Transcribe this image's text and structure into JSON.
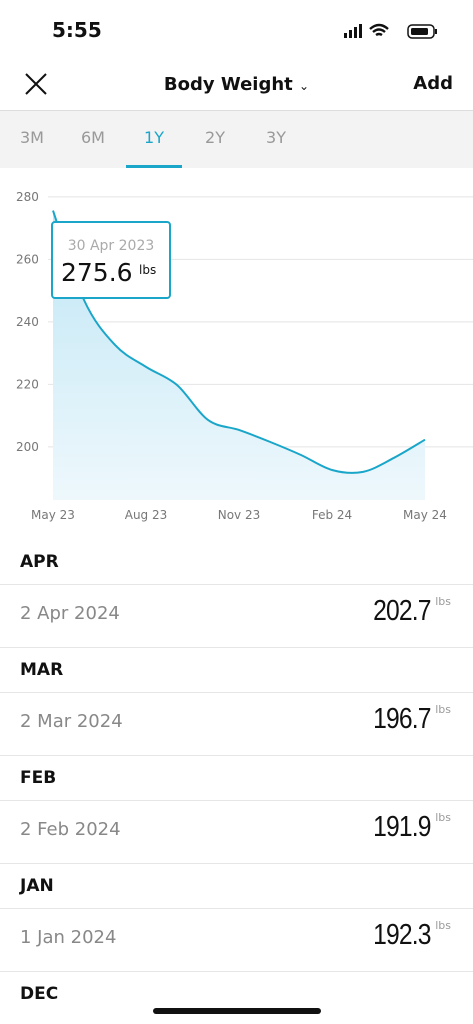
{
  "status": {
    "time": "5:55"
  },
  "header": {
    "title": "Body Weight",
    "action": "Add"
  },
  "tabs": {
    "items": [
      "3M",
      "6M",
      "1Y",
      "2Y",
      "3Y"
    ],
    "active": 2
  },
  "chart_data": {
    "type": "line",
    "color": "#1aa6c9",
    "grid": true,
    "categories": [
      "May 23",
      null,
      null,
      "Aug 23",
      null,
      null,
      "Nov 23",
      null,
      null,
      "Feb 24",
      null,
      null,
      "May 24"
    ],
    "values": [
      275.6,
      247,
      232.6,
      225.6,
      219.8,
      208.6,
      205.4,
      201.6,
      197.4,
      192.6,
      192,
      196.5,
      202.3
    ],
    "ylim": [
      183,
      282
    ],
    "yticks": [
      200,
      220,
      240,
      260,
      280
    ],
    "tooltip": {
      "date": "30 Apr 2023",
      "value": 275.6,
      "unit": "lbs"
    }
  },
  "list": [
    {
      "month": "APR",
      "entries": [
        {
          "date": "2 Apr 2024",
          "value": 202.7,
          "unit": "lbs"
        }
      ]
    },
    {
      "month": "MAR",
      "entries": [
        {
          "date": "2 Mar 2024",
          "value": 196.7,
          "unit": "lbs"
        }
      ]
    },
    {
      "month": "FEB",
      "entries": [
        {
          "date": "2 Feb 2024",
          "value": 191.9,
          "unit": "lbs"
        }
      ]
    },
    {
      "month": "JAN",
      "entries": [
        {
          "date": "1 Jan 2024",
          "value": 192.3,
          "unit": "lbs"
        }
      ]
    },
    {
      "month": "DEC",
      "entries": []
    }
  ]
}
